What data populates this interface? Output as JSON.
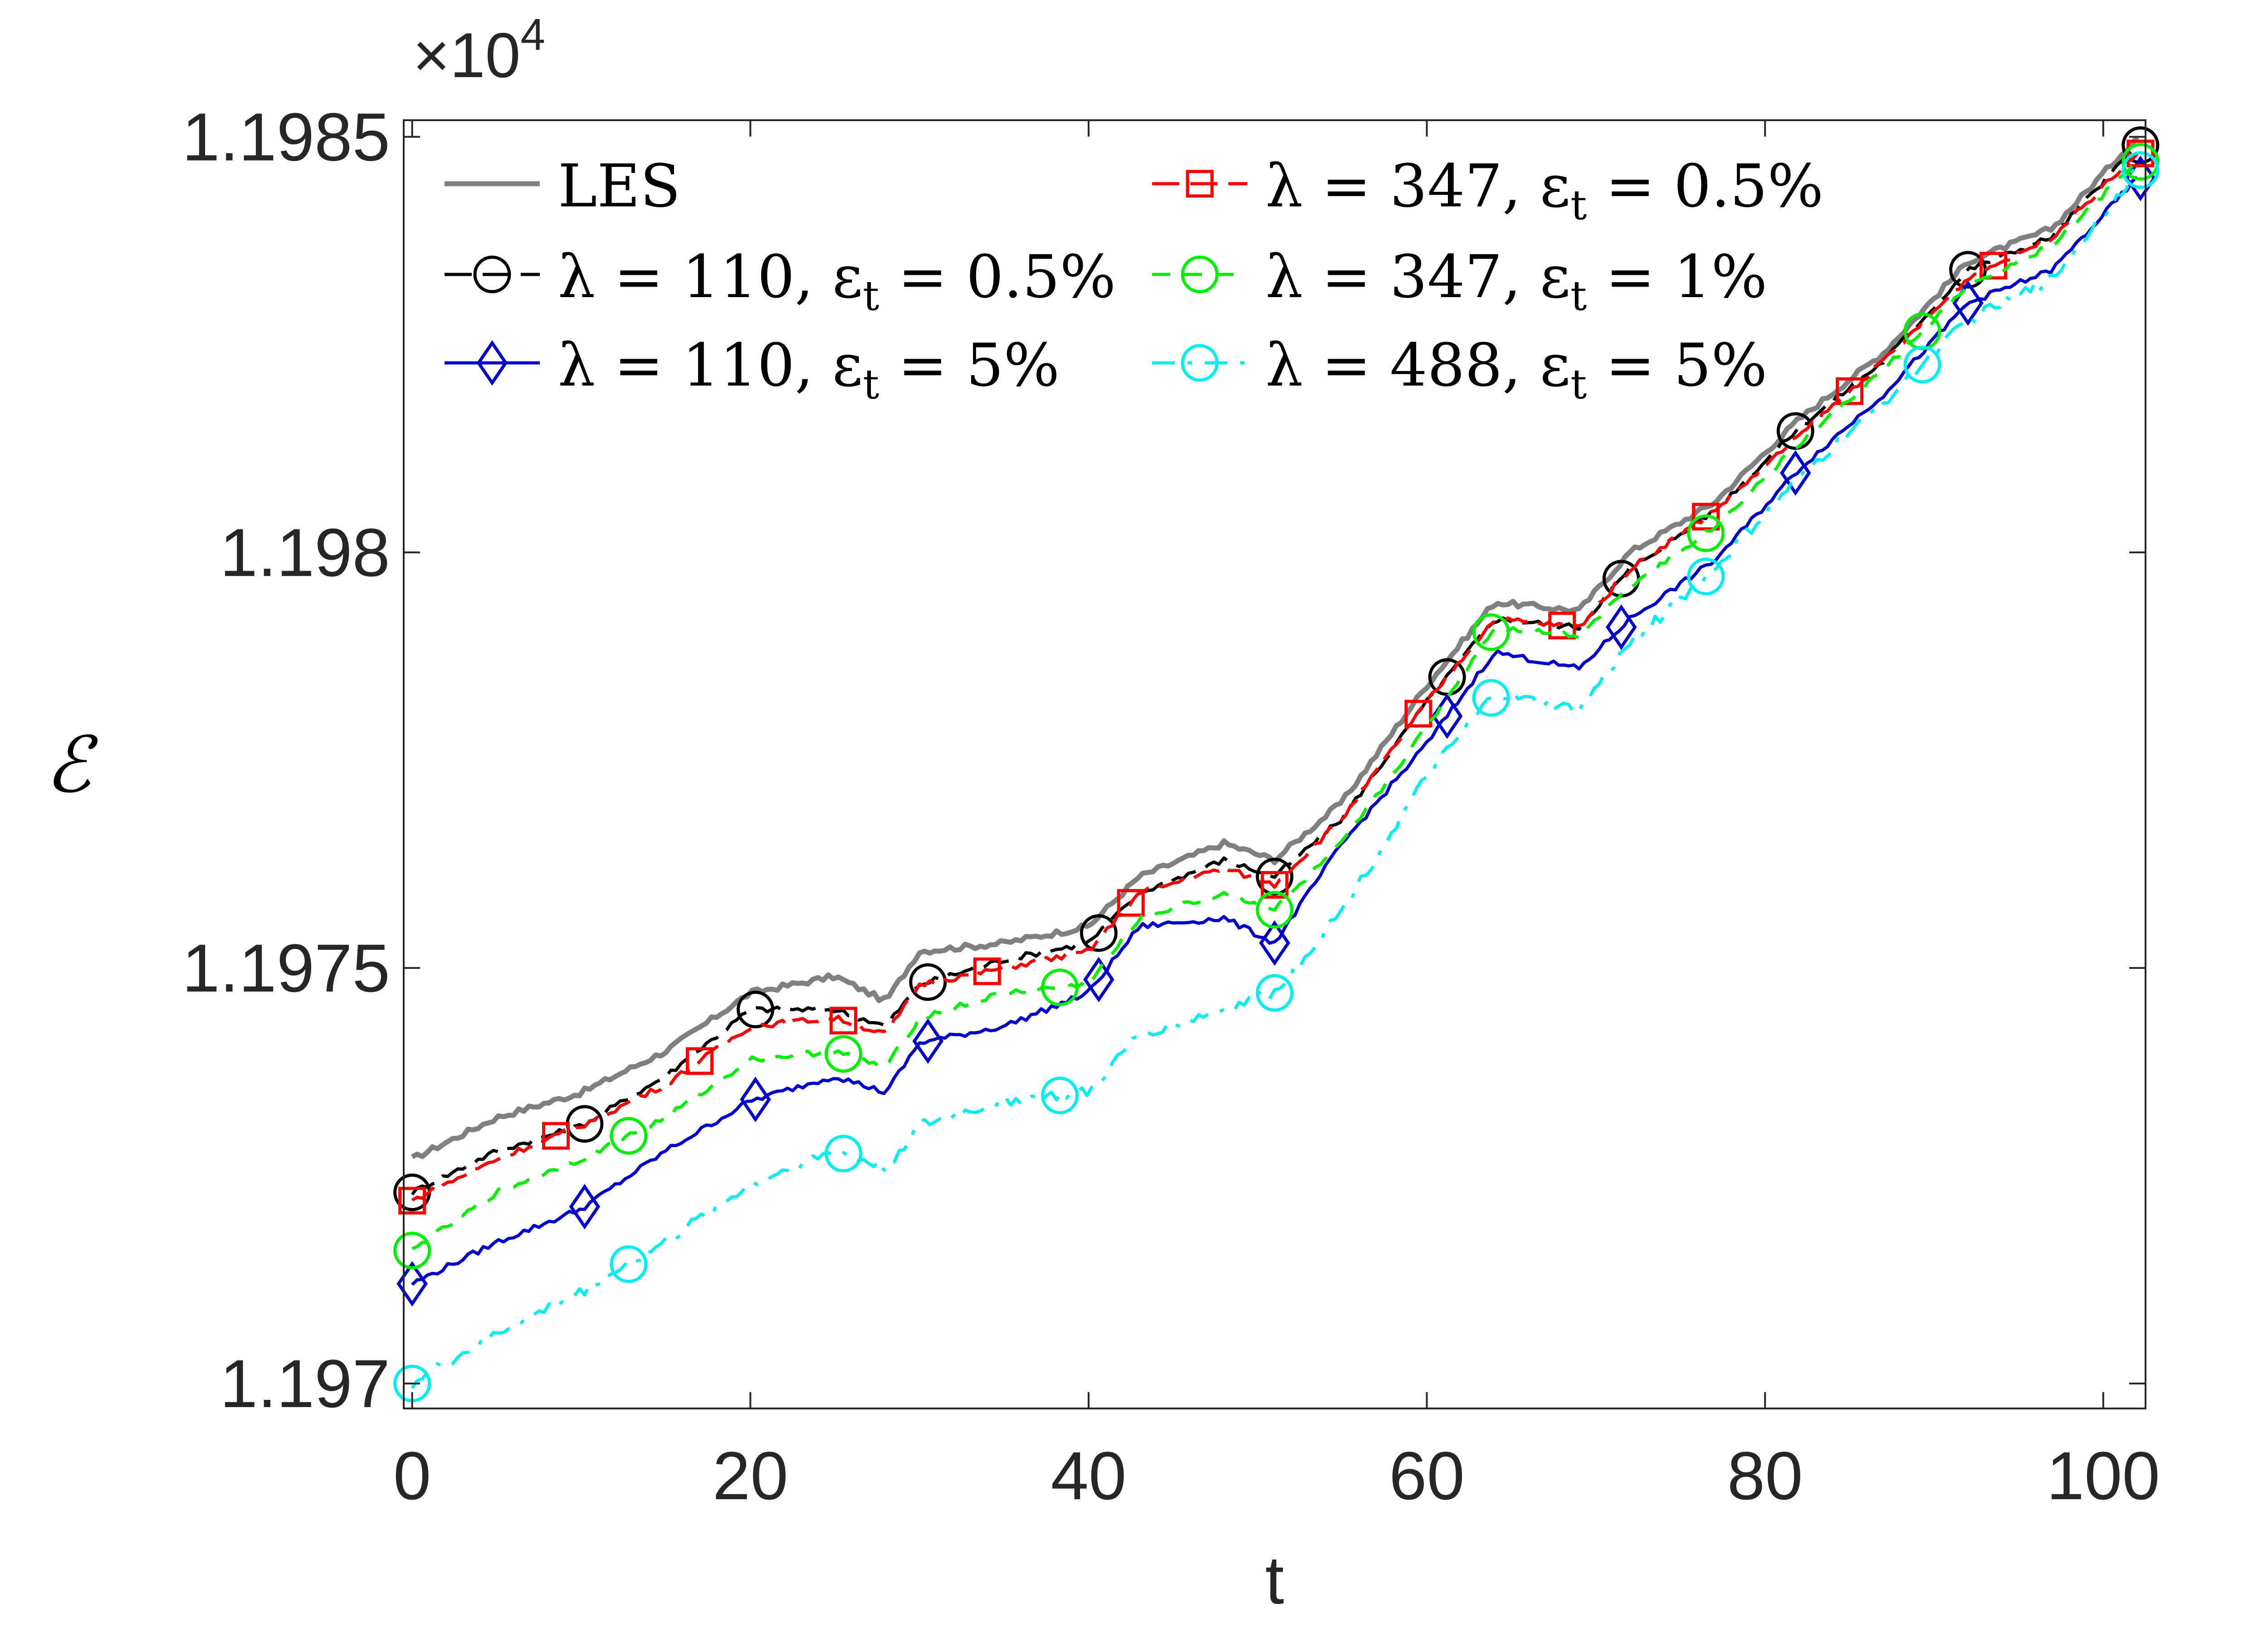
{
  "chart_data": {
    "type": "line",
    "title": "",
    "xlabel": "t",
    "ylabel": "ℰ",
    "y_exponent_label": "×10",
    "y_exponent_power": "4",
    "xlim": [
      -0.5,
      102.5
    ],
    "ylim": [
      11969.7,
      11985.2
    ],
    "x_ticks": [
      0,
      20,
      40,
      60,
      80,
      100
    ],
    "x_tick_labels": [
      "0",
      "20",
      "40",
      "60",
      "80",
      "100"
    ],
    "y_ticks": [
      11970,
      11975,
      11980,
      11985
    ],
    "y_tick_labels": [
      "1.197",
      "1.1975",
      "1.198",
      "1.1985"
    ],
    "grid": false,
    "legend_position": "top-left",
    "anchors_t": [
      0,
      5,
      10,
      15,
      20,
      25,
      28,
      30,
      35,
      40,
      43,
      48,
      51,
      55,
      60,
      64,
      69,
      72,
      77,
      82,
      87,
      92,
      97,
      102
    ],
    "series": [
      {
        "name": "LES",
        "label_main": "LES",
        "label_suffix": "",
        "color": "#808080",
        "dash": "solid",
        "marker": "none",
        "marker_t": [],
        "values": [
          11972.7,
          11973.2,
          11973.5,
          11974.0,
          11974.7,
          11974.9,
          11974.6,
          11975.2,
          11975.3,
          11975.5,
          11976.1,
          11976.5,
          11976.3,
          11977.0,
          11978.4,
          11979.4,
          11979.3,
          11980.0,
          11980.6,
          11981.6,
          11982.4,
          11983.5,
          11983.9,
          11985.0
        ]
      },
      {
        "name": "λ = 110, ε_t = 0.5%",
        "label_main": "λ = 110,  ε",
        "label_sub": "t",
        "label_suffix": " = 0.5%",
        "color": "#000000",
        "dash": "long-dash",
        "marker": "circle",
        "marker_t": [
          0,
          10.2,
          20.3,
          30.5,
          40.6,
          51,
          61.2,
          71.5,
          81.8,
          92,
          102.2
        ],
        "values": [
          11972.3,
          11972.8,
          11973.1,
          11973.7,
          11974.5,
          11974.5,
          11974.3,
          11974.8,
          11975.1,
          11975.3,
          11975.9,
          11976.3,
          11976.1,
          11976.8,
          11978.2,
          11979.2,
          11979.1,
          11979.8,
          11980.5,
          11981.5,
          11982.3,
          11983.4,
          11983.8,
          11984.9
        ]
      },
      {
        "name": "λ = 110, ε_t = 5%",
        "label_main": "λ = 110,  ε",
        "label_sub": "t",
        "label_suffix": " = 5%",
        "color": "#0000cc",
        "dash": "solid",
        "marker": "diamond",
        "marker_t": [
          0,
          10.2,
          20.3,
          30.5,
          40.6,
          51,
          61.2,
          71.5,
          81.8,
          92,
          102.2
        ],
        "values": [
          11971.2,
          11971.7,
          11972.1,
          11972.8,
          11973.4,
          11973.7,
          11973.5,
          11974.1,
          11974.3,
          11974.7,
          11975.5,
          11975.6,
          11975.3,
          11976.5,
          11977.7,
          11978.8,
          11978.6,
          11979.2,
          11979.9,
          11981.0,
          11981.9,
          11983.0,
          11983.4,
          11984.5
        ]
      },
      {
        "name": "λ = 347, ε_t = 0.5%",
        "label_main": "λ = 347,  ε",
        "label_sub": "t",
        "label_suffix": " = 0.5%",
        "color": "#ff0000",
        "dash": "long-dash",
        "marker": "square",
        "marker_t": [
          0,
          8.5,
          17,
          25.5,
          34,
          42.5,
          51,
          59.5,
          68,
          76.5,
          85,
          93.5,
          102.2
        ],
        "values": [
          11972.2,
          11972.7,
          11973.1,
          11973.6,
          11974.3,
          11974.4,
          11974.2,
          11974.8,
          11975.0,
          11975.2,
          11975.9,
          11976.2,
          11976.0,
          11976.8,
          11978.2,
          11979.2,
          11979.1,
          11979.8,
          11980.5,
          11981.4,
          11982.3,
          11983.3,
          11983.8,
          11984.8
        ]
      },
      {
        "name": "λ = 347, ε_t = 1%",
        "label_main": "λ = 347,  ε",
        "label_sub": "t",
        "label_suffix": " = 1%",
        "color": "#00ee00",
        "dash": "dash",
        "marker": "circle",
        "marker_t": [
          0,
          12.8,
          25.5,
          38.3,
          51,
          63.8,
          76.5,
          89.3,
          102.2
        ],
        "values": [
          11971.6,
          11972.3,
          11972.7,
          11973.2,
          11973.9,
          11974.0,
          11973.8,
          11974.4,
          11974.7,
          11974.8,
          11975.6,
          11975.9,
          11975.7,
          11976.5,
          11977.9,
          11979.1,
          11979.0,
          11979.6,
          11980.3,
          11981.3,
          11982.2,
          11983.2,
          11983.7,
          11984.7
        ]
      },
      {
        "name": "λ = 488, ε_t = 5%",
        "label_main": "λ = 488,  ε",
        "label_sub": "t",
        "label_suffix": " = 5%",
        "color": "#00eeee",
        "dash": "dash-dot",
        "marker": "circle",
        "marker_t": [
          0,
          12.8,
          25.5,
          38.3,
          51,
          63.8,
          76.5,
          89.3,
          102.2
        ],
        "values": [
          11970.0,
          11970.6,
          11971.1,
          11971.7,
          11972.4,
          11972.8,
          11972.6,
          11973.1,
          11973.4,
          11973.5,
          11974.2,
          11974.5,
          11974.7,
          11975.7,
          11977.3,
          11978.3,
          11978.1,
          11978.9,
          11979.8,
          11980.9,
          11981.8,
          11982.8,
          11983.3,
          11984.6
        ]
      }
    ]
  }
}
